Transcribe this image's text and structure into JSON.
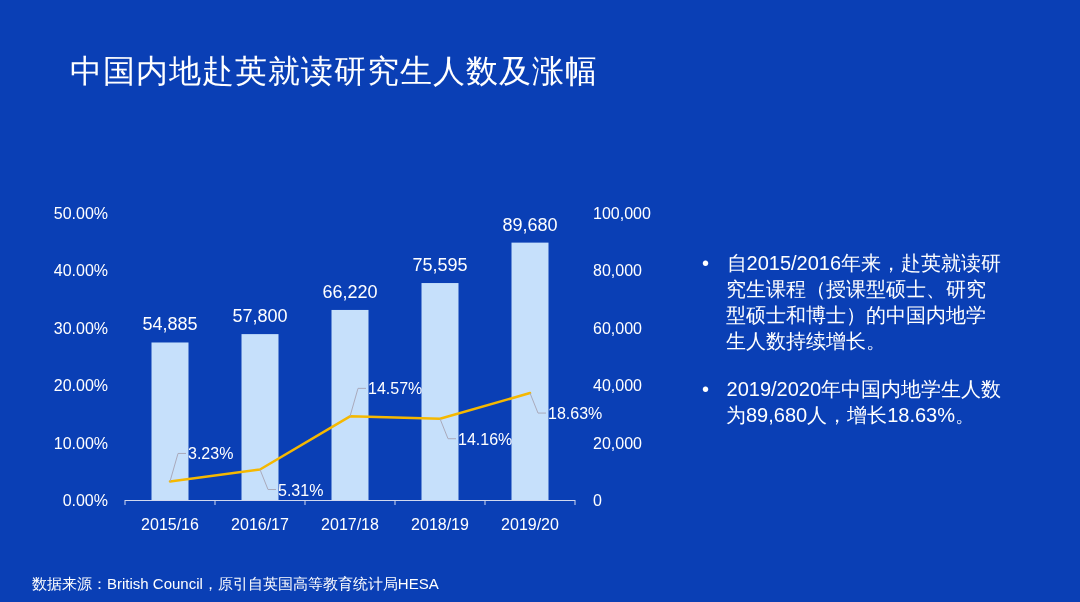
{
  "chart_data": {
    "type": "bar",
    "title": "中国内地赴英就读研究生人数及涨幅",
    "categories": [
      "2015/16",
      "2016/17",
      "2017/18",
      "2018/19",
      "2019/20"
    ],
    "series": [
      {
        "axis": "y2",
        "color": "#c6e0fb",
        "values": [
          54885,
          57800,
          66220,
          75595,
          89680
        ],
        "value_labels": [
          "54,885",
          "57,800",
          "66,220",
          "75,595",
          "89,680"
        ]
      },
      {
        "type": "line",
        "color": "#f5b800",
        "values": [
          3.23,
          5.31,
          14.57,
          14.16,
          18.63
        ],
        "value_labels": [
          "3.23%",
          "5.31%",
          "14.57%",
          "14.16%",
          "18.63%"
        ]
      }
    ],
    "ylim": [
      0,
      50
    ],
    "yticks": [
      {
        "value": 0,
        "label": "0.00%"
      },
      {
        "value": 10,
        "label": "10.00%"
      },
      {
        "value": 20,
        "label": "20.00%"
      },
      {
        "value": 30,
        "label": "30.00%"
      },
      {
        "value": 40,
        "label": "40.00%"
      },
      {
        "value": 50,
        "label": "50.00%"
      }
    ],
    "y2lim": [
      0,
      100000
    ],
    "y2ticks": [
      0,
      {
        "value": 20000,
        "label": "20,000"
      },
      {
        "value": 40000,
        "label": "40,000"
      },
      {
        "value": 60000,
        "label": "60,000"
      },
      {
        "value": 80000,
        "label": "80,000"
      },
      {
        "value": 100000,
        "label": "100,000"
      }
    ],
    "marker": "none",
    "grid": false,
    "annotations": [
      "• 自2015/2016年来，赴英就读研究生课程（授课型硕士、研究型硕士和博士）的中国内地学生人数持续增长。",
      "• 2019/2020年中国内地学生人数为89,680人，增长18.63%。",
      "数据来源：British Council，原引自英国高等教育统计局HESA"
    ]
  }
}
